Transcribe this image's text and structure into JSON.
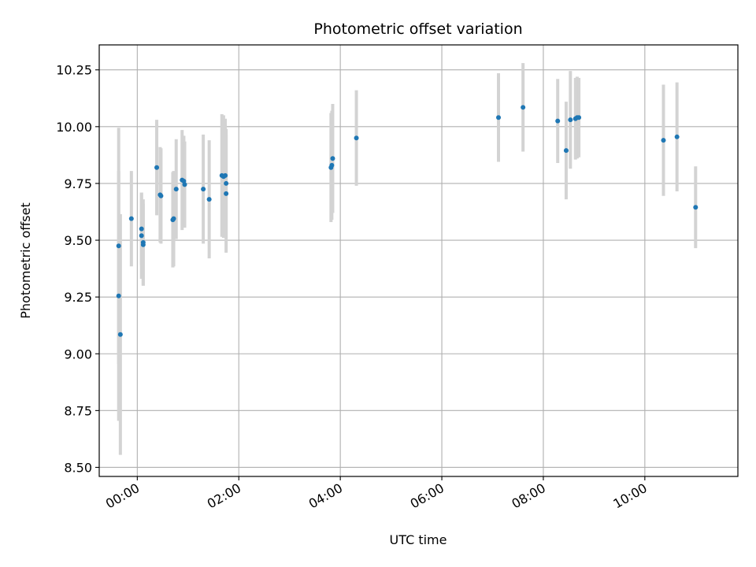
{
  "chart_data": {
    "type": "scatter",
    "title": "Photometric offset variation",
    "xlabel": "UTC time",
    "ylabel": "Photometric offset",
    "grid": true,
    "xlim": [
      "23:15",
      "11:50"
    ],
    "ylim": [
      8.46,
      10.36
    ],
    "x_ticks": [
      "00:00",
      "02:00",
      "04:00",
      "06:00",
      "08:00",
      "10:00"
    ],
    "y_ticks": [
      "8.50",
      "8.75",
      "9.00",
      "9.25",
      "9.50",
      "9.75",
      "10.00",
      "10.25"
    ],
    "colors": {
      "point": "#1f77b4",
      "errorbar": "#d3d3d3",
      "grid": "#b0b0b0"
    },
    "points": [
      {
        "x": "23:38",
        "y": 9.475,
        "err": 0.52
      },
      {
        "x": "23:38",
        "y": 9.255,
        "err": 0.55
      },
      {
        "x": "23:40",
        "y": 9.085,
        "err": 0.53
      },
      {
        "x": "23:53",
        "y": 9.595,
        "err": 0.21
      },
      {
        "x": "00:05",
        "y": 9.55,
        "err": 0.16
      },
      {
        "x": "00:05",
        "y": 9.52,
        "err": 0.19
      },
      {
        "x": "00:07",
        "y": 9.49,
        "err": 0.19
      },
      {
        "x": "00:07",
        "y": 9.48,
        "err": 0.18
      },
      {
        "x": "00:23",
        "y": 9.82,
        "err": 0.21
      },
      {
        "x": "00:27",
        "y": 9.7,
        "err": 0.21
      },
      {
        "x": "00:28",
        "y": 9.695,
        "err": 0.21
      },
      {
        "x": "00:42",
        "y": 9.59,
        "err": 0.21
      },
      {
        "x": "00:43",
        "y": 9.595,
        "err": 0.21
      },
      {
        "x": "00:46",
        "y": 9.725,
        "err": 0.22
      },
      {
        "x": "00:53",
        "y": 9.765,
        "err": 0.22
      },
      {
        "x": "00:55",
        "y": 9.76,
        "err": 0.2
      },
      {
        "x": "00:56",
        "y": 9.745,
        "err": 0.19
      },
      {
        "x": "01:18",
        "y": 9.725,
        "err": 0.24
      },
      {
        "x": "01:25",
        "y": 9.68,
        "err": 0.26
      },
      {
        "x": "01:40",
        "y": 9.785,
        "err": 0.27
      },
      {
        "x": "01:42",
        "y": 9.78,
        "err": 0.27
      },
      {
        "x": "01:44",
        "y": 9.785,
        "err": 0.25
      },
      {
        "x": "01:45",
        "y": 9.75,
        "err": 0.24
      },
      {
        "x": "01:45",
        "y": 9.705,
        "err": 0.26
      },
      {
        "x": "03:49",
        "y": 9.82,
        "err": 0.24
      },
      {
        "x": "03:50",
        "y": 9.83,
        "err": 0.24
      },
      {
        "x": "03:51",
        "y": 9.86,
        "err": 0.24
      },
      {
        "x": "04:19",
        "y": 9.95,
        "err": 0.21
      },
      {
        "x": "07:07",
        "y": 10.04,
        "err": 0.195
      },
      {
        "x": "07:36",
        "y": 10.085,
        "err": 0.195
      },
      {
        "x": "08:17",
        "y": 10.025,
        "err": 0.185
      },
      {
        "x": "08:27",
        "y": 9.895,
        "err": 0.215
      },
      {
        "x": "08:32",
        "y": 10.03,
        "err": 0.215
      },
      {
        "x": "08:38",
        "y": 10.035,
        "err": 0.18
      },
      {
        "x": "08:40",
        "y": 10.04,
        "err": 0.18
      },
      {
        "x": "08:42",
        "y": 10.04,
        "err": 0.175
      },
      {
        "x": "10:22",
        "y": 9.94,
        "err": 0.245
      },
      {
        "x": "10:38",
        "y": 9.955,
        "err": 0.24
      },
      {
        "x": "11:00",
        "y": 9.645,
        "err": 0.18
      }
    ]
  }
}
